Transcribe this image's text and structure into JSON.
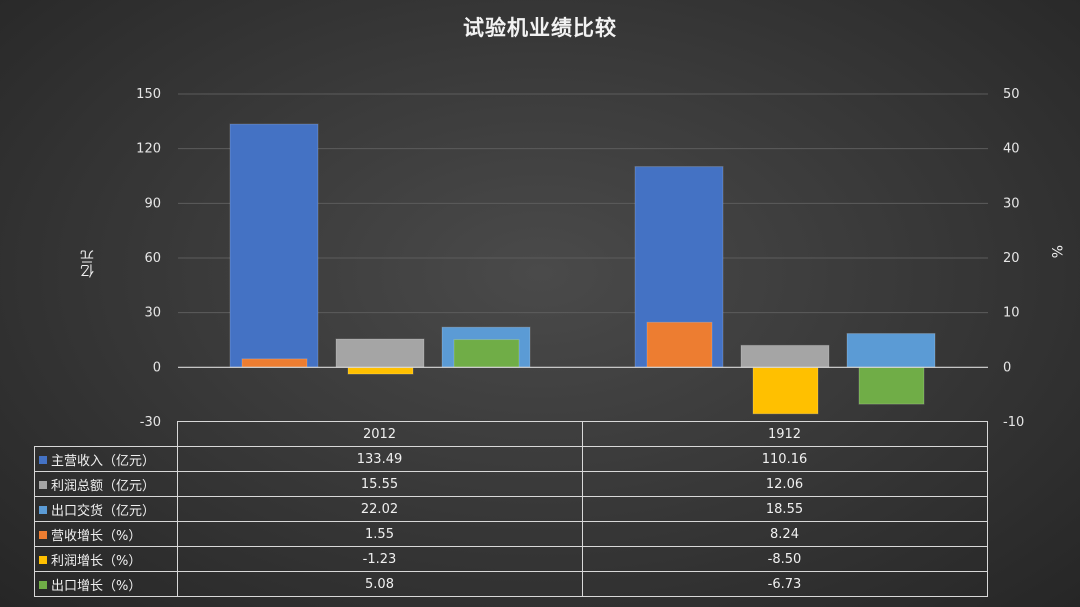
{
  "chart_data": {
    "type": "bar",
    "title": "试验机业绩比较",
    "categories": [
      "2012",
      "1912"
    ],
    "left_axis": {
      "label": "亿元",
      "ticks": [
        "150",
        "120",
        "90",
        "60",
        "30",
        "0",
        "-30"
      ],
      "range": [
        -30,
        150
      ]
    },
    "right_axis": {
      "label": "%",
      "ticks": [
        "50",
        "40",
        "30",
        "20",
        "10",
        "0",
        "-10"
      ],
      "range": [
        -10,
        50
      ]
    },
    "series": [
      {
        "name": "主营收入（亿元）",
        "axis": "left",
        "color": "#4472c4",
        "values": [
          133.49,
          110.16
        ],
        "labels": [
          "133.49",
          "110.16"
        ]
      },
      {
        "name": "利润总额（亿元）",
        "axis": "left",
        "color": "#a5a5a5",
        "values": [
          15.55,
          12.06
        ],
        "labels": [
          "15.55",
          "12.06"
        ]
      },
      {
        "name": "出口交货（亿元）",
        "axis": "left",
        "color": "#5b9bd5",
        "values": [
          22.02,
          18.55
        ],
        "labels": [
          "22.02",
          "18.55"
        ]
      },
      {
        "name": "营收增长（%）",
        "axis": "right",
        "color": "#ed7d31",
        "values": [
          1.55,
          8.24
        ],
        "labels": [
          "1.55",
          "8.24"
        ]
      },
      {
        "name": "利润增长（%）",
        "axis": "right",
        "color": "#ffc000",
        "values": [
          -1.23,
          -8.5
        ],
        "labels": [
          "-1.23",
          "-8.50"
        ]
      },
      {
        "name": "出口增长（%）",
        "axis": "right",
        "color": "#70ad47",
        "values": [
          5.08,
          -6.73
        ],
        "labels": [
          "5.08",
          "-6.73"
        ]
      }
    ],
    "grid": true,
    "legend": "data-table-below"
  }
}
